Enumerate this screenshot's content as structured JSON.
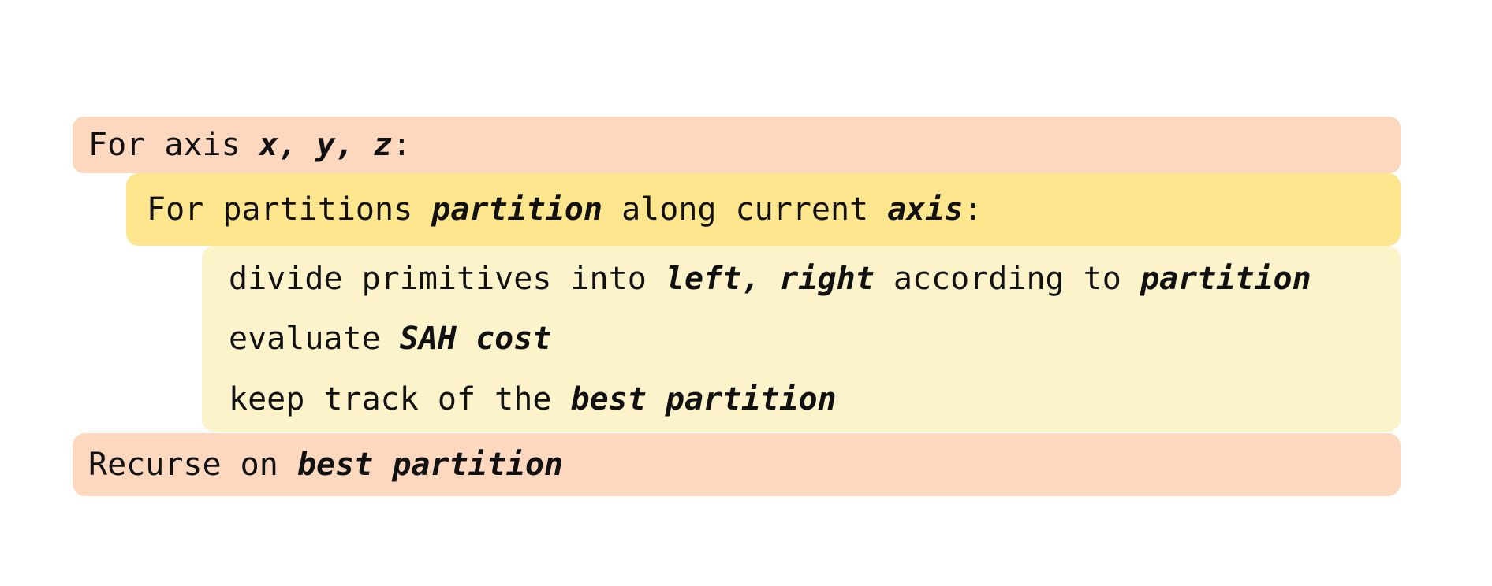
{
  "colors": {
    "outer_block": "#fdd8bf",
    "middle_block": "#fde68e",
    "inner_block": "#fdf3cb"
  },
  "outer_loop": {
    "prefix": "For axis ",
    "vars": "x, y, z",
    "suffix": ":"
  },
  "inner_loop": {
    "prefix": "For partitions ",
    "var": "partition",
    "middle": " along current ",
    "axis": "axis",
    "suffix": ":"
  },
  "body_lines": {
    "line1": {
      "prefix": "divide primitives into ",
      "sets": "left, right",
      "middle": " according to ",
      "var": "partition"
    },
    "line2": {
      "prefix": "evaluate ",
      "var": "SAH cost"
    },
    "line3": {
      "prefix": "keep track of the ",
      "var": "best partition"
    }
  },
  "recurse": {
    "prefix": "Recurse on ",
    "var": "best partition"
  }
}
